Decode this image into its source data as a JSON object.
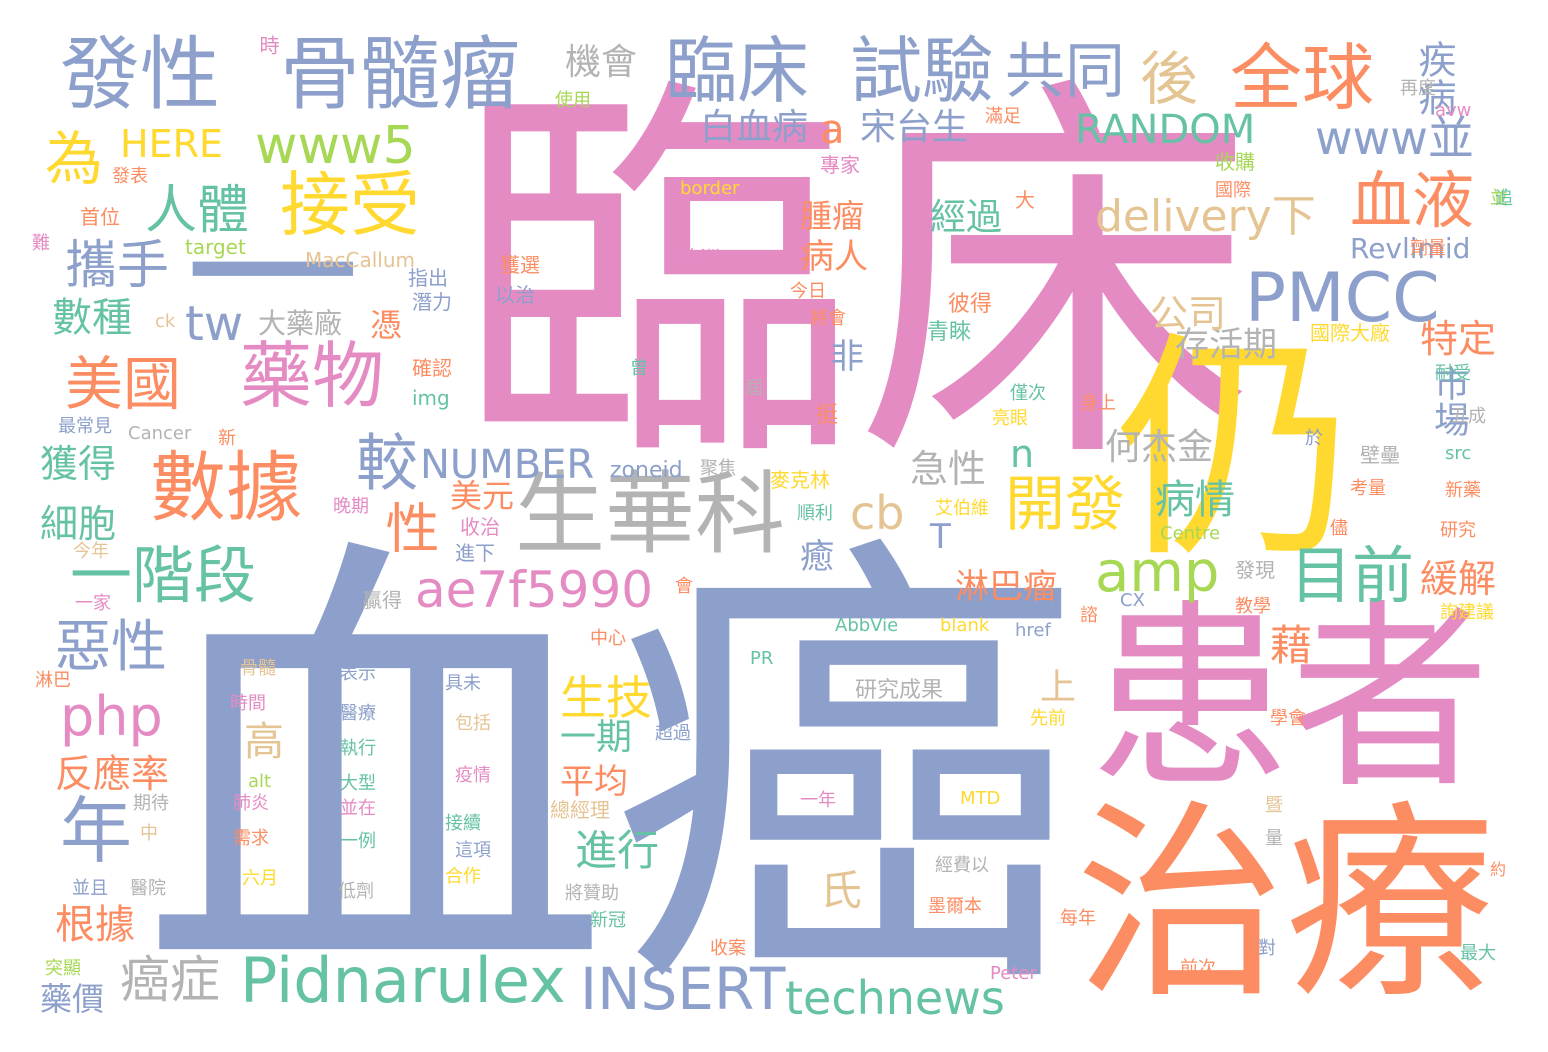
{
  "palette": {
    "pink": "#e58bc4",
    "blue": "#8da0cb",
    "orange": "#fc8d62",
    "green": "#66c2a5",
    "yellow": "#ffd92f",
    "lime": "#a6d854",
    "gray": "#b3b3b3",
    "tan": "#e5c494"
  },
  "words": [
    {
      "text": "臨床",
      "color": "pink"
    },
    {
      "text": "血癌",
      "color": "blue"
    },
    {
      "text": "仍",
      "color": "yellow"
    },
    {
      "text": "患者",
      "color": "pink"
    },
    {
      "text": "治療",
      "color": "orange"
    },
    {
      "text": "一",
      "color": "blue"
    },
    {
      "text": "發性",
      "color": "blue"
    },
    {
      "text": "骨髓瘤",
      "color": "blue"
    },
    {
      "text": "臨床",
      "color": "blue"
    },
    {
      "text": "試驗",
      "color": "blue"
    },
    {
      "text": "共同",
      "color": "blue"
    },
    {
      "text": "全球",
      "color": "orange"
    },
    {
      "text": "後",
      "color": "tan"
    },
    {
      "text": "疾病",
      "color": "blue"
    },
    {
      "text": "機會",
      "color": "gray"
    },
    {
      "text": "時",
      "color": "pink"
    },
    {
      "text": "為",
      "color": "yellow"
    },
    {
      "text": "HERE",
      "color": "yellow"
    },
    {
      "text": "www5",
      "color": "lime"
    },
    {
      "text": "接受",
      "color": "yellow"
    },
    {
      "text": "人體",
      "color": "green"
    },
    {
      "text": "攜手",
      "color": "blue"
    },
    {
      "text": "數種",
      "color": "green"
    },
    {
      "text": "藥物",
      "color": "pink"
    },
    {
      "text": "美國",
      "color": "orange"
    },
    {
      "text": "tw",
      "color": "blue"
    },
    {
      "text": "大藥廠",
      "color": "gray"
    },
    {
      "text": "數據",
      "color": "orange"
    },
    {
      "text": "較",
      "color": "blue"
    },
    {
      "text": "一階段",
      "color": "green"
    },
    {
      "text": "年",
      "color": "blue"
    },
    {
      "text": "惡性",
      "color": "blue"
    },
    {
      "text": "php",
      "color": "pink"
    },
    {
      "text": "反應率",
      "color": "orange"
    },
    {
      "text": "獲得",
      "color": "green"
    },
    {
      "text": "細胞",
      "color": "green"
    },
    {
      "text": "根據",
      "color": "orange"
    },
    {
      "text": "藥價",
      "color": "blue"
    },
    {
      "text": "癌症",
      "color": "gray"
    },
    {
      "text": "Pidnarulex",
      "color": "green"
    },
    {
      "text": "INSERT",
      "color": "blue"
    },
    {
      "text": "technews",
      "color": "green"
    },
    {
      "text": "生華科",
      "color": "gray"
    },
    {
      "text": "ae7f5990",
      "color": "pink"
    },
    {
      "text": "amp",
      "color": "lime"
    },
    {
      "text": "cb",
      "color": "tan"
    },
    {
      "text": "開發",
      "color": "yellow"
    },
    {
      "text": "目前",
      "color": "green"
    },
    {
      "text": "PMCC",
      "color": "blue"
    },
    {
      "text": "血液",
      "color": "orange"
    },
    {
      "text": "delivery下",
      "color": "tan"
    },
    {
      "text": "www並",
      "color": "blue"
    },
    {
      "text": "RANDOM",
      "color": "green"
    },
    {
      "text": "宋台生",
      "color": "blue"
    },
    {
      "text": "白血病",
      "color": "blue"
    },
    {
      "text": "a",
      "color": "orange"
    },
    {
      "text": "NUMBER",
      "color": "blue"
    },
    {
      "text": "生技",
      "color": "yellow"
    },
    {
      "text": "一期",
      "color": "green"
    },
    {
      "text": "平均",
      "color": "orange"
    },
    {
      "text": "進行",
      "color": "green"
    },
    {
      "text": "氏",
      "color": "tan"
    },
    {
      "text": "市場",
      "color": "blue"
    },
    {
      "text": "特定",
      "color": "orange"
    },
    {
      "text": "存活期",
      "color": "gray"
    },
    {
      "text": "公司",
      "color": "tan"
    },
    {
      "text": "病情",
      "color": "green"
    },
    {
      "text": "緩解",
      "color": "orange"
    },
    {
      "text": "淋巴瘤",
      "color": "orange"
    },
    {
      "text": "何杰金",
      "color": "gray"
    },
    {
      "text": "急性",
      "color": "gray"
    },
    {
      "text": "經過",
      "color": "green"
    },
    {
      "text": "腫瘤",
      "color": "orange"
    },
    {
      "text": "病人",
      "color": "orange"
    },
    {
      "text": "Revlimid",
      "color": "blue"
    },
    {
      "text": "性",
      "color": "orange"
    },
    {
      "text": "n",
      "color": "green"
    },
    {
      "text": "T",
      "color": "blue"
    },
    {
      "text": "美元",
      "color": "orange"
    },
    {
      "text": "高",
      "color": "tan"
    },
    {
      "text": "上",
      "color": "tan"
    },
    {
      "text": "藉",
      "color": "orange"
    },
    {
      "text": "非",
      "color": "blue"
    },
    {
      "text": "憑",
      "color": "orange"
    },
    {
      "text": "癒",
      "color": "blue"
    },
    {
      "text": "zoneid",
      "color": "blue"
    },
    {
      "text": "研究成果",
      "color": "gray"
    },
    {
      "text": "澳洲",
      "color": "pink"
    },
    {
      "text": "border",
      "color": "yellow"
    },
    {
      "text": "target",
      "color": "lime"
    },
    {
      "text": "MacCallum",
      "color": "tan"
    },
    {
      "text": "收購",
      "color": "lime"
    },
    {
      "text": "使用",
      "color": "lime"
    },
    {
      "text": "專家",
      "color": "pink"
    },
    {
      "text": "發表",
      "color": "orange"
    },
    {
      "text": "首位",
      "color": "orange"
    },
    {
      "text": "國際",
      "color": "orange"
    },
    {
      "text": "劑量",
      "color": "orange"
    },
    {
      "text": "滿足",
      "color": "orange"
    },
    {
      "text": "再度",
      "color": "gray"
    },
    {
      "text": "avw",
      "color": "pink"
    },
    {
      "text": "並",
      "color": "lime"
    },
    {
      "text": "難",
      "color": "pink"
    },
    {
      "text": "ck",
      "color": "tan"
    },
    {
      "text": "Cancer",
      "color": "gray"
    },
    {
      "text": "新",
      "color": "orange"
    },
    {
      "text": "最常見",
      "color": "blue"
    },
    {
      "text": "獲選",
      "color": "orange"
    },
    {
      "text": "以治",
      "color": "blue"
    },
    {
      "text": "指出",
      "color": "blue"
    },
    {
      "text": "潛力",
      "color": "blue"
    },
    {
      "text": "今日",
      "color": "orange"
    },
    {
      "text": "將會",
      "color": "orange"
    },
    {
      "text": "確認",
      "color": "orange"
    },
    {
      "text": "img",
      "color": "green"
    },
    {
      "text": "晚期",
      "color": "pink"
    },
    {
      "text": "收治",
      "color": "pink"
    },
    {
      "text": "進下",
      "color": "blue"
    },
    {
      "text": "今年",
      "color": "tan"
    },
    {
      "text": "一家",
      "color": "pink"
    },
    {
      "text": "淋巴",
      "color": "orange"
    },
    {
      "text": "中心",
      "color": "orange"
    },
    {
      "text": "贏得",
      "color": "gray"
    },
    {
      "text": "麥克林",
      "color": "yellow"
    },
    {
      "text": "順利",
      "color": "green"
    },
    {
      "text": "艾伯維",
      "color": "yellow"
    },
    {
      "text": "聚焦",
      "color": "gray"
    },
    {
      "text": "挺",
      "color": "orange"
    },
    {
      "text": "彼得",
      "color": "orange"
    },
    {
      "text": "青睞",
      "color": "green"
    },
    {
      "text": "僅次",
      "color": "green"
    },
    {
      "text": "亮眼",
      "color": "yellow"
    },
    {
      "text": "身上",
      "color": "orange"
    },
    {
      "text": "曾",
      "color": "green"
    },
    {
      "text": "屆",
      "color": "gray"
    },
    {
      "text": "國際大廠",
      "color": "yellow"
    },
    {
      "text": "耐受",
      "color": "green"
    },
    {
      "text": "五成",
      "color": "gray"
    },
    {
      "text": "於",
      "color": "blue"
    },
    {
      "text": "壁壘",
      "color": "gray"
    },
    {
      "text": "src",
      "color": "green"
    },
    {
      "text": "新藥",
      "color": "orange"
    },
    {
      "text": "考量",
      "color": "orange"
    },
    {
      "text": "研究",
      "color": "orange"
    },
    {
      "text": "儘",
      "color": "orange"
    },
    {
      "text": "Centre",
      "color": "lime"
    },
    {
      "text": "發現",
      "color": "gray"
    },
    {
      "text": "會",
      "color": "orange"
    },
    {
      "text": "教學",
      "color": "orange"
    },
    {
      "text": "詢建議",
      "color": "yellow"
    },
    {
      "text": "CX",
      "color": "blue"
    },
    {
      "text": "諮",
      "color": "orange"
    },
    {
      "text": "AbbVie",
      "color": "green"
    },
    {
      "text": "blank",
      "color": "yellow"
    },
    {
      "text": "href",
      "color": "blue"
    },
    {
      "text": "PR",
      "color": "green"
    },
    {
      "text": "學會",
      "color": "orange"
    },
    {
      "text": "骨髓",
      "color": "tan"
    },
    {
      "text": "時間",
      "color": "pink"
    },
    {
      "text": "表示",
      "color": "blue"
    },
    {
      "text": "醫療",
      "color": "blue"
    },
    {
      "text": "執行",
      "color": "green"
    },
    {
      "text": "大型",
      "color": "green"
    },
    {
      "text": "並在",
      "color": "pink"
    },
    {
      "text": "具未",
      "color": "blue"
    },
    {
      "text": "包括",
      "color": "tan"
    },
    {
      "text": "疫情",
      "color": "pink"
    },
    {
      "text": "接續",
      "color": "green"
    },
    {
      "text": "這項",
      "color": "blue"
    },
    {
      "text": "合作",
      "color": "yellow"
    },
    {
      "text": "先前",
      "color": "yellow"
    },
    {
      "text": "超過",
      "color": "blue"
    },
    {
      "text": "總經理",
      "color": "tan"
    },
    {
      "text": "一年",
      "color": "pink"
    },
    {
      "text": "MTD",
      "color": "yellow"
    },
    {
      "text": "暨",
      "color": "tan"
    },
    {
      "text": "量",
      "color": "gray"
    },
    {
      "text": "alt",
      "color": "lime"
    },
    {
      "text": "肺炎",
      "color": "pink"
    },
    {
      "text": "需求",
      "color": "orange"
    },
    {
      "text": "一例",
      "color": "green"
    },
    {
      "text": "期待",
      "color": "gray"
    },
    {
      "text": "中",
      "color": "tan"
    },
    {
      "text": "六月",
      "color": "yellow"
    },
    {
      "text": "低劑",
      "color": "gray"
    },
    {
      "text": "並且",
      "color": "blue"
    },
    {
      "text": "醫院",
      "color": "gray"
    },
    {
      "text": "經費以",
      "color": "gray"
    },
    {
      "text": "將贊助",
      "color": "gray"
    },
    {
      "text": "新冠",
      "color": "green"
    },
    {
      "text": "墨爾本",
      "color": "orange"
    },
    {
      "text": "每年",
      "color": "orange"
    },
    {
      "text": "約",
      "color": "orange"
    },
    {
      "text": "突顯",
      "color": "lime"
    },
    {
      "text": "收案",
      "color": "orange"
    },
    {
      "text": "Peter",
      "color": "pink"
    },
    {
      "text": "前次",
      "color": "orange"
    },
    {
      "text": "對",
      "color": "blue"
    },
    {
      "text": "最大",
      "color": "green"
    },
    {
      "text": "大",
      "color": "orange"
    },
    {
      "text": "追",
      "color": "green"
    }
  ]
}
